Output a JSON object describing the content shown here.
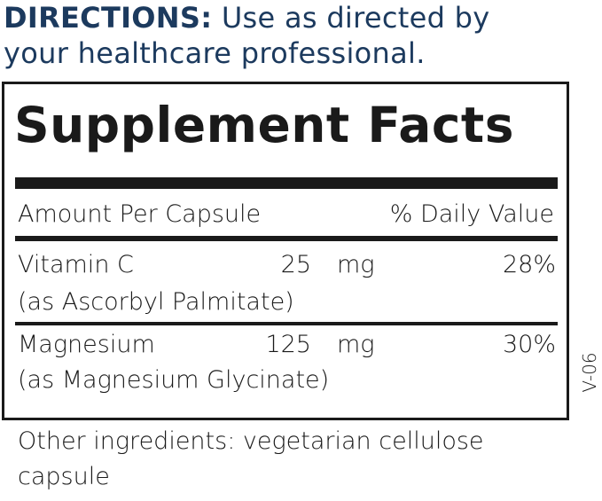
{
  "directions": {
    "label": "DIRECTIONS:",
    "line1": "Use as directed by",
    "line2": "your healthcare professional."
  },
  "facts": {
    "title": "Supplement Facts",
    "header_left": "Amount Per Capsule",
    "header_right": "% Daily Value",
    "rows": [
      {
        "name": "Vitamin C",
        "amount": "25",
        "unit": "mg",
        "dv": "28%",
        "source": "(as Ascorbyl Palmitate)"
      },
      {
        "name": "Magnesium",
        "amount": "125",
        "unit": "mg",
        "dv": "30%",
        "source": "(as Magnesium Glycinate)"
      }
    ]
  },
  "version_code": "V-06",
  "other_ingredients": {
    "line1": "Other ingredients: vegetarian cellulose",
    "line2": "capsule"
  },
  "colors": {
    "directions_text": "#1c3a5e",
    "label_text": "#1a1a1a"
  }
}
